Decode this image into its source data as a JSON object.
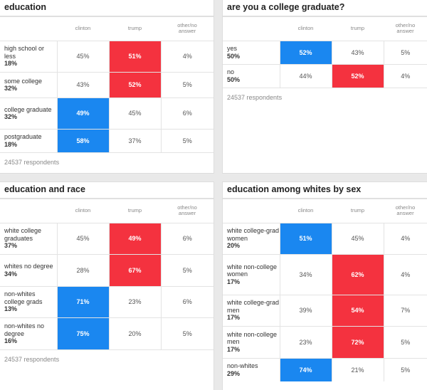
{
  "chart_data": [
    {
      "type": "table",
      "title": "education",
      "columns": [
        "clinton",
        "trump",
        "other/no answer"
      ],
      "rows": [
        {
          "label": "high school or less",
          "share": "18%",
          "values": [
            "45%",
            "51%",
            "4%"
          ],
          "winner": 1
        },
        {
          "label": "some college",
          "share": "32%",
          "values": [
            "43%",
            "52%",
            "5%"
          ],
          "winner": 1
        },
        {
          "label": "college graduate",
          "share": "32%",
          "values": [
            "49%",
            "45%",
            "6%"
          ],
          "winner": 0
        },
        {
          "label": "postgraduate",
          "share": "18%",
          "values": [
            "58%",
            "37%",
            "5%"
          ],
          "winner": 0
        }
      ],
      "respondents": "24537 respondents"
    },
    {
      "type": "table",
      "title": "are you a college graduate?",
      "columns": [
        "clinton",
        "trump",
        "other/no answer"
      ],
      "rows": [
        {
          "label": "yes",
          "share": "50%",
          "values": [
            "52%",
            "43%",
            "5%"
          ],
          "winner": 0
        },
        {
          "label": "no",
          "share": "50%",
          "values": [
            "44%",
            "52%",
            "4%"
          ],
          "winner": 1
        }
      ],
      "respondents": "24537 respondents"
    },
    {
      "type": "table",
      "title": "education and race",
      "columns": [
        "clinton",
        "trump",
        "other/no answer"
      ],
      "rows": [
        {
          "label": "white college graduates",
          "share": "37%",
          "values": [
            "45%",
            "49%",
            "6%"
          ],
          "winner": 1
        },
        {
          "label": "whites no degree",
          "share": "34%",
          "values": [
            "28%",
            "67%",
            "5%"
          ],
          "winner": 1
        },
        {
          "label": "non-whites college grads",
          "share": "13%",
          "values": [
            "71%",
            "23%",
            "6%"
          ],
          "winner": 0
        },
        {
          "label": "non-whites no degree",
          "share": "16%",
          "values": [
            "75%",
            "20%",
            "5%"
          ],
          "winner": 0
        }
      ],
      "respondents": "24537 respondents"
    },
    {
      "type": "table",
      "title": "education among whites by sex",
      "columns": [
        "clinton",
        "trump",
        "other/no answer"
      ],
      "rows": [
        {
          "label": "white college-grad women",
          "share": "20%",
          "values": [
            "51%",
            "45%",
            "4%"
          ],
          "winner": 0
        },
        {
          "label": "white non-college women",
          "share": "17%",
          "values": [
            "34%",
            "62%",
            "4%"
          ],
          "winner": 1
        },
        {
          "label": "white college-grad men",
          "share": "17%",
          "values": [
            "39%",
            "54%",
            "7%"
          ],
          "winner": 1
        },
        {
          "label": "white non-college men",
          "share": "17%",
          "values": [
            "23%",
            "72%",
            "5%"
          ],
          "winner": 1
        },
        {
          "label": "non-whites",
          "share": "29%",
          "values": [
            "74%",
            "21%",
            "5%"
          ],
          "winner": 0
        }
      ],
      "respondents": ""
    }
  ],
  "colors": {
    "clinton": "#1a87f0",
    "trump": "#f4323f"
  }
}
